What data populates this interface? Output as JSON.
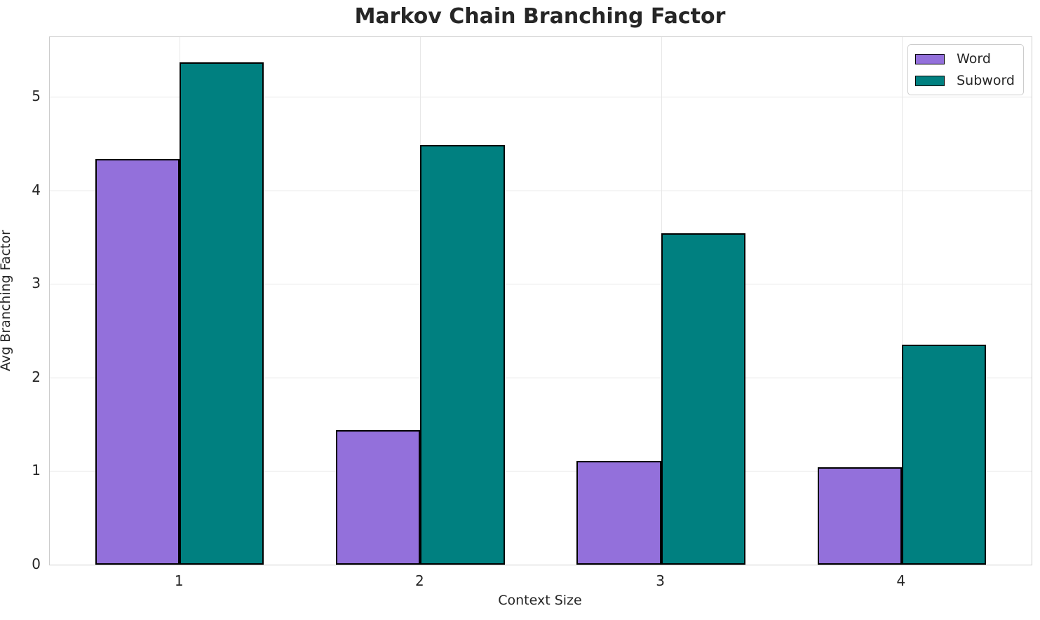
{
  "chart_data": {
    "type": "bar",
    "title": "Markov Chain Branching Factor",
    "xlabel": "Context Size",
    "ylabel": "Avg Branching Factor",
    "categories": [
      "1",
      "2",
      "3",
      "4"
    ],
    "series": [
      {
        "name": "Word",
        "color": "#9370DB",
        "values": [
          4.34,
          1.44,
          1.11,
          1.04
        ]
      },
      {
        "name": "Subword",
        "color": "#008080",
        "values": [
          5.37,
          4.49,
          3.54,
          2.35
        ]
      }
    ],
    "bar_edge_color": "#000000",
    "bar_width": 0.35,
    "xlim": [
      -0.54,
      3.54
    ],
    "ylim": [
      0,
      5.64
    ],
    "yticks": [
      0,
      1,
      2,
      3,
      4,
      5
    ],
    "grid": true,
    "grid_color": "#e7e7e7",
    "spine_color": "#cccccc",
    "text_color": "#262626",
    "legend_position": "upper right"
  }
}
